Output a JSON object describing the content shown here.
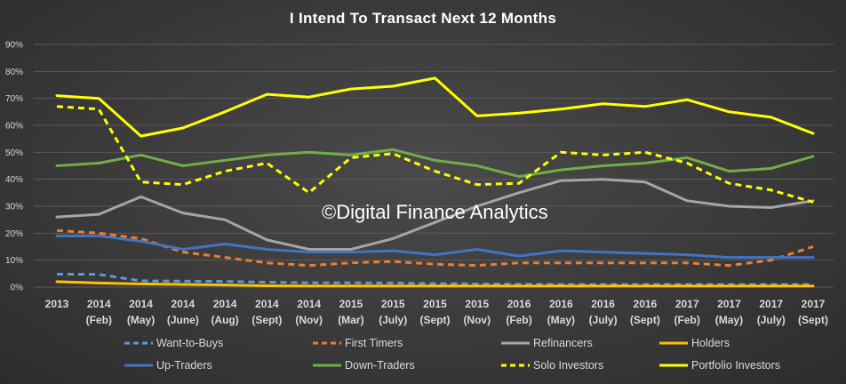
{
  "chart_data": {
    "type": "line",
    "title": "I Intend To Transact Next 12 Months",
    "watermark": "©Digital Finance Analytics",
    "x": [
      [
        "2013",
        ""
      ],
      [
        "2014",
        "(Feb)"
      ],
      [
        "2014",
        "(May)"
      ],
      [
        "2014",
        "(June)"
      ],
      [
        "2014",
        "(Aug)"
      ],
      [
        "2014",
        "(Sept)"
      ],
      [
        "2014",
        "(Nov)"
      ],
      [
        "2015",
        "(Mar)"
      ],
      [
        "2015",
        "(July)"
      ],
      [
        "2015",
        "(Sept)"
      ],
      [
        "2015",
        "(Nov)"
      ],
      [
        "2016",
        "(Feb)"
      ],
      [
        "2016",
        "(May)"
      ],
      [
        "2016",
        "(July)"
      ],
      [
        "2016",
        "(Sept)"
      ],
      [
        "2017",
        "(Feb)"
      ],
      [
        "2017",
        "(May)"
      ],
      [
        "2017",
        "(July)"
      ],
      [
        "2017",
        "(Sept)"
      ]
    ],
    "y_ticks": [
      "0%",
      "10%",
      "20%",
      "30%",
      "40%",
      "50%",
      "60%",
      "70%",
      "80%",
      "90%"
    ],
    "ylim": [
      0,
      90
    ],
    "grid": true,
    "legend_position": "bottom",
    "series": [
      {
        "name": "Want-to-Buys",
        "color": "#5b9bd5",
        "dash": true,
        "values": [
          4.8,
          4.7,
          2.3,
          2.2,
          2.1,
          1.8,
          1.6,
          1.6,
          1.5,
          1.3,
          1.2,
          1.1,
          1.0,
          1.0,
          1.0,
          1.0,
          1.0,
          1.0,
          1.0
        ]
      },
      {
        "name": "First Timers",
        "color": "#ed7d31",
        "dash": true,
        "values": [
          21,
          20,
          18,
          13,
          11,
          9,
          8,
          9,
          9.5,
          8.5,
          8,
          9,
          9,
          9,
          9,
          9,
          8,
          10,
          15
        ]
      },
      {
        "name": "Refinancers",
        "color": "#a5a5a5",
        "dash": false,
        "values": [
          26,
          27,
          33.5,
          27.5,
          25,
          17.5,
          14,
          14,
          18,
          24,
          30,
          35,
          39.5,
          40,
          39,
          32,
          30,
          29.5,
          32
        ]
      },
      {
        "name": "Holders",
        "color": "#ffc000",
        "dash": false,
        "values": [
          2,
          1.5,
          1.2,
          1,
          0.8,
          0.5,
          0.4,
          0.4,
          0.4,
          0.4,
          0.4,
          0.4,
          0.4,
          0.4,
          0.4,
          0.4,
          0.4,
          0.4,
          0.4
        ]
      },
      {
        "name": "Up-Traders",
        "color": "#4472c4",
        "dash": false,
        "values": [
          19,
          19,
          17,
          14,
          16,
          14,
          13,
          13,
          13.5,
          12,
          14,
          11.5,
          13.5,
          13,
          12.5,
          12,
          11,
          11,
          11
        ]
      },
      {
        "name": "Down-Traders",
        "color": "#70ad47",
        "dash": false,
        "values": [
          45,
          46,
          49,
          45,
          47,
          49,
          50,
          49,
          51,
          47,
          45,
          41,
          43.5,
          45,
          46,
          48,
          43,
          44,
          48.5
        ]
      },
      {
        "name": "Solo Investors",
        "color": "#ffff00",
        "dash": true,
        "values": [
          67,
          66,
          39,
          38,
          43,
          46,
          35,
          48,
          49.5,
          43,
          38,
          38.5,
          50,
          49,
          50,
          46,
          38.5,
          36,
          31.5
        ]
      },
      {
        "name": "Portfolio Investors",
        "color": "#ffff00",
        "dash": false,
        "values": [
          71,
          70,
          56,
          59,
          65,
          71.5,
          70.5,
          73.5,
          74.5,
          77.5,
          63.5,
          64.5,
          66,
          68,
          67,
          69.5,
          65,
          63,
          57
        ]
      }
    ]
  }
}
